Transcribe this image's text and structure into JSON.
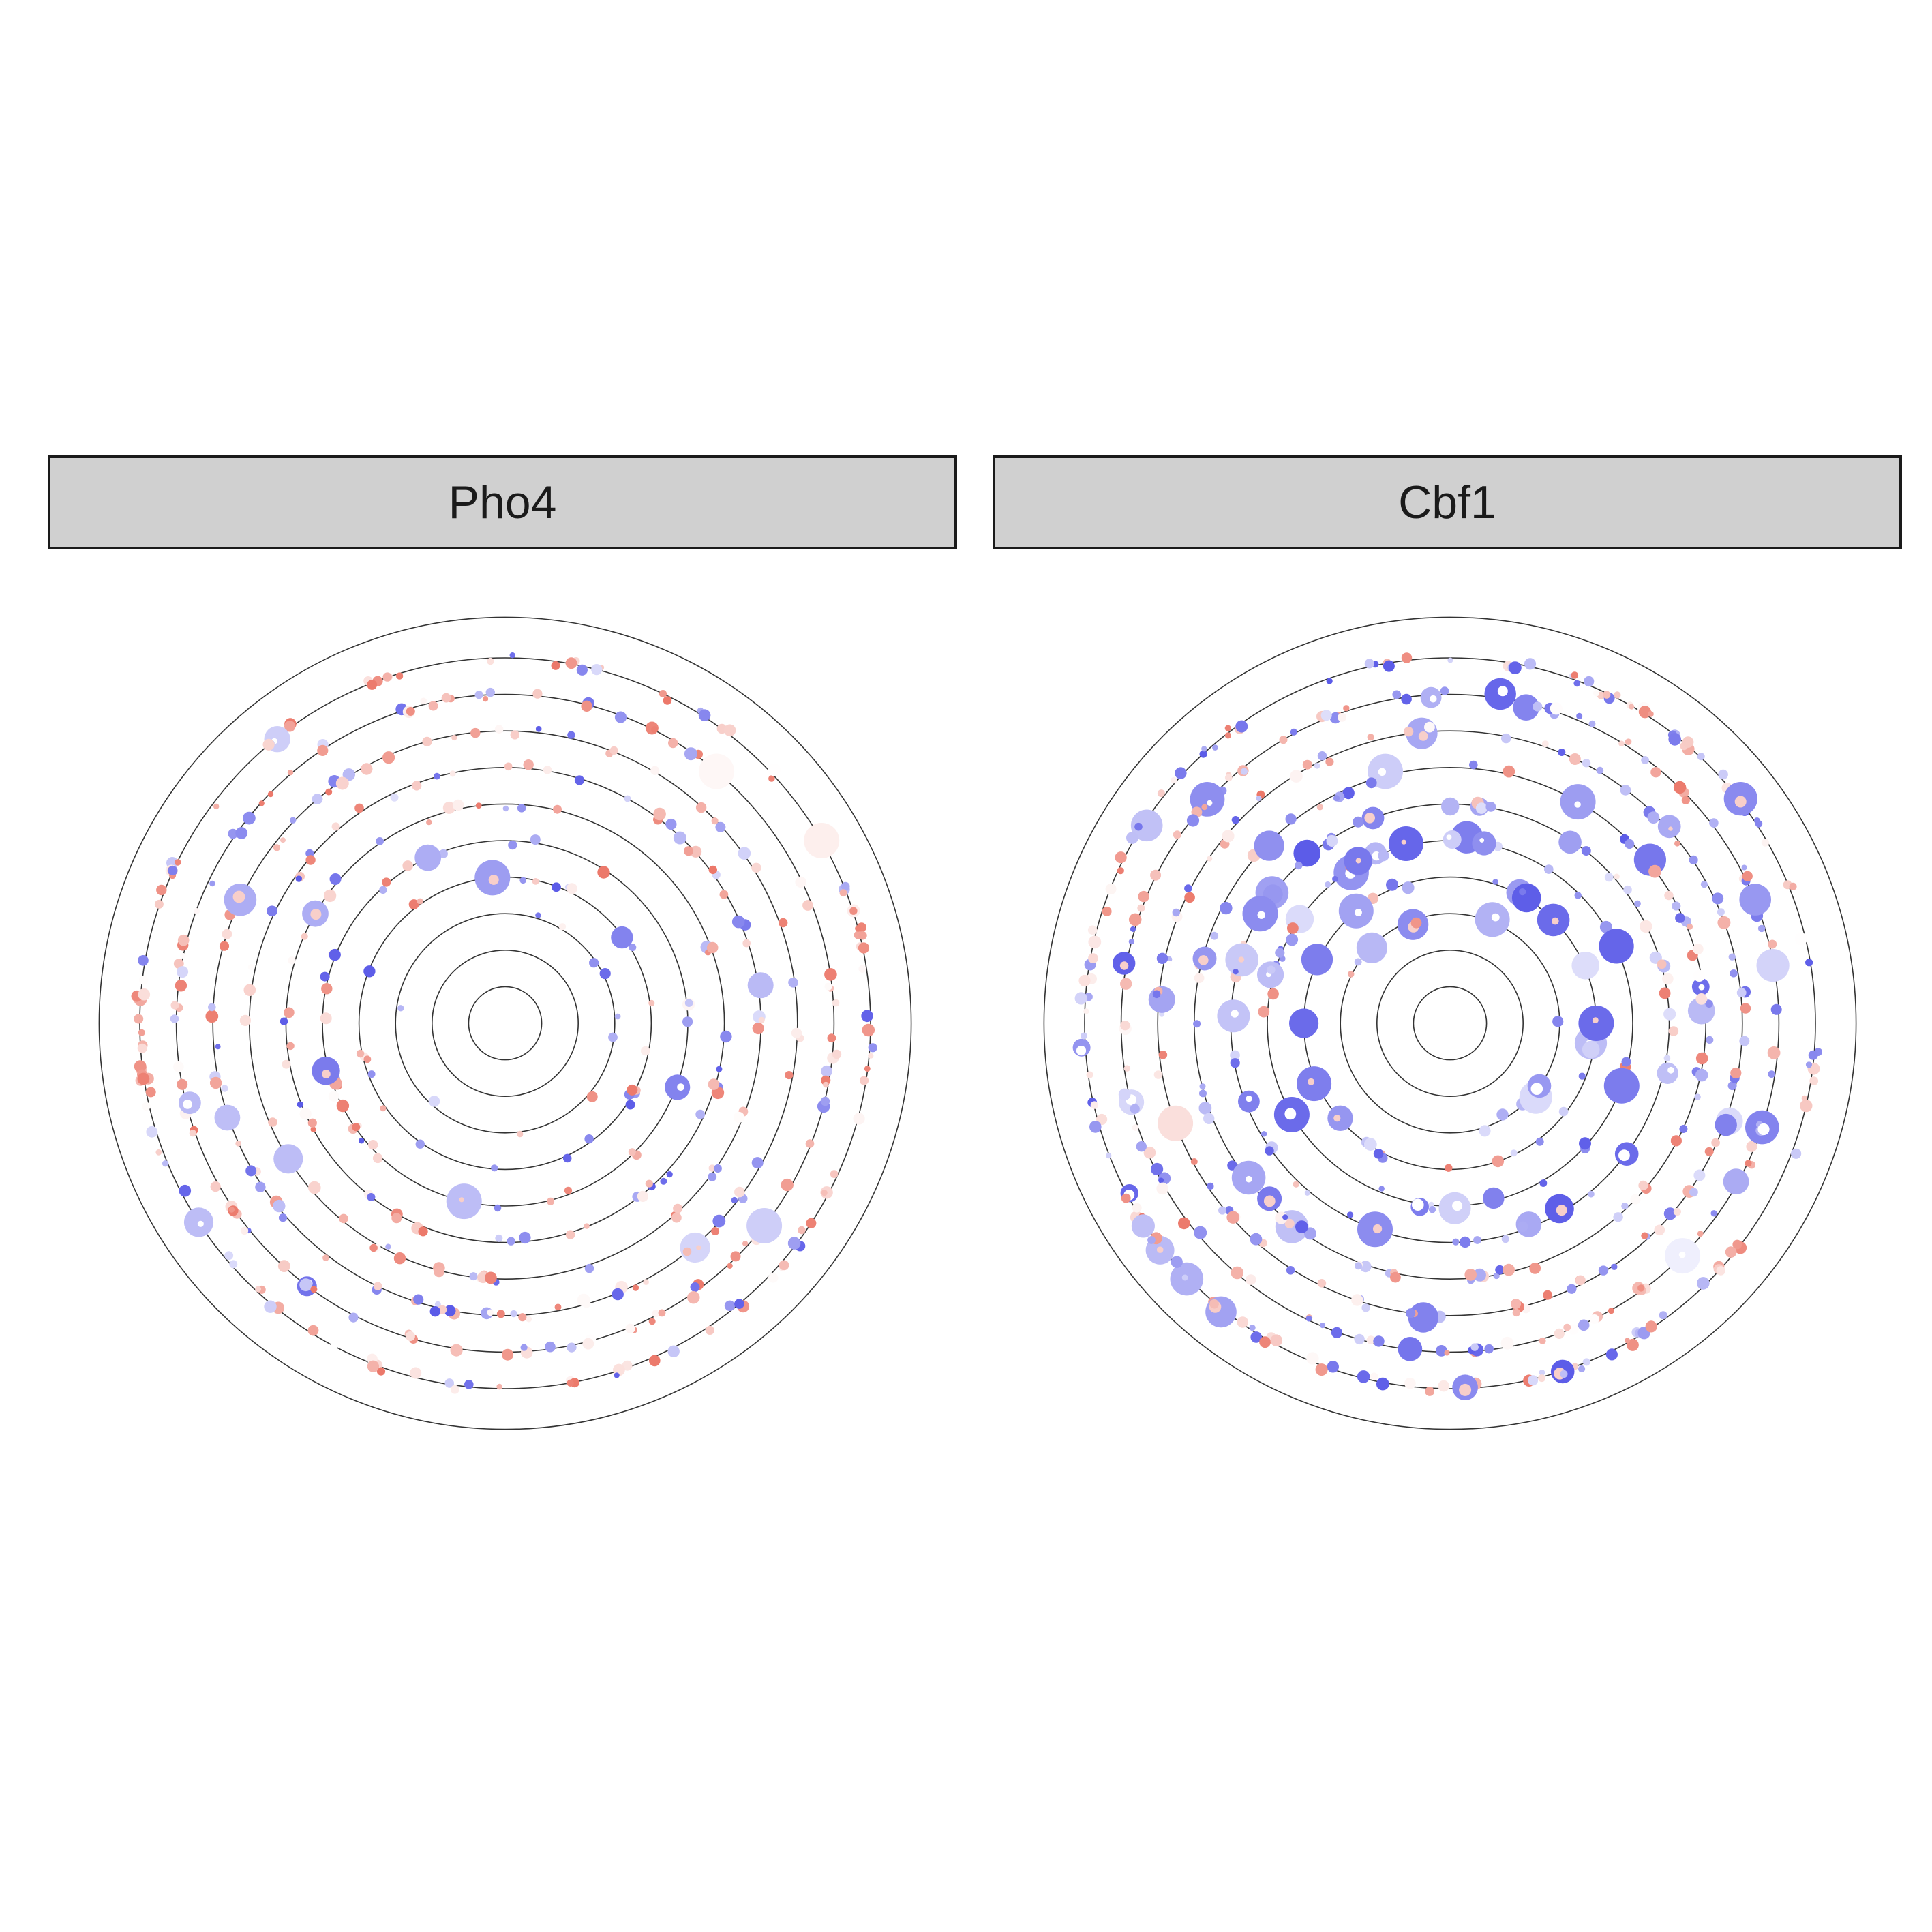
{
  "chart_data": [
    {
      "type": "scatter",
      "coordinate_system": "polar",
      "facet": "Pho4",
      "title": "",
      "xlabel": "",
      "ylabel": "",
      "axis_labels_shown": false,
      "grid": true,
      "rings": [
        1,
        2,
        3,
        4,
        5,
        6,
        7,
        8,
        9,
        10,
        11
      ],
      "outer_limit": 11,
      "color_scale": {
        "low": "#5b5be8",
        "mid": "#ffffff",
        "high": "#e8604f"
      },
      "density": 1.0,
      "blue_share": 0.45,
      "large_point_share": 0.05,
      "seed": 11,
      "highlights": [
        {
          "ring": 4,
          "angle": 355,
          "value": -0.6,
          "size": 1.0
        },
        {
          "ring": 5,
          "angle": 193,
          "value": -0.4,
          "size": 1.0
        },
        {
          "ring": 5,
          "angle": 335,
          "value": -0.5,
          "size": 0.7
        },
        {
          "ring": 6,
          "angle": 300,
          "value": -0.5,
          "size": 0.7
        },
        {
          "ring": 7,
          "angle": 238,
          "value": -0.4,
          "size": 0.8
        },
        {
          "ring": 8,
          "angle": 295,
          "value": -0.5,
          "size": 0.9
        },
        {
          "ring": 9,
          "angle": 128,
          "value": -0.3,
          "size": 1.0
        },
        {
          "ring": 9,
          "angle": 40,
          "value": 0.05,
          "size": 1.0
        },
        {
          "ring": 10,
          "angle": 60,
          "value": 0.1,
          "size": 1.0
        },
        {
          "ring": 10,
          "angle": 237,
          "value": -0.4,
          "size": 0.8
        }
      ]
    },
    {
      "type": "scatter",
      "coordinate_system": "polar",
      "facet": "Cbf1",
      "title": "",
      "xlabel": "",
      "ylabel": "",
      "axis_labels_shown": false,
      "grid": true,
      "rings": [
        1,
        2,
        3,
        4,
        5,
        6,
        7,
        8,
        9,
        10,
        11
      ],
      "outer_limit": 11,
      "color_scale": {
        "low": "#5b5be8",
        "mid": "#ffffff",
        "high": "#e8604f"
      },
      "density": 1.25,
      "blue_share": 0.8,
      "large_point_share": 0.3,
      "seed": 29,
      "highlights": [
        {
          "ring": 4,
          "angle": 45,
          "value": -0.9,
          "size": 0.9
        },
        {
          "ring": 4,
          "angle": 90,
          "value": -0.9,
          "size": 1.0
        },
        {
          "ring": 4,
          "angle": 270,
          "value": -0.9,
          "size": 0.8
        },
        {
          "ring": 5,
          "angle": 240,
          "value": -0.9,
          "size": 1.0
        },
        {
          "ring": 5,
          "angle": 110,
          "value": -0.8,
          "size": 1.0
        },
        {
          "ring": 6,
          "angle": 300,
          "value": -0.7,
          "size": 1.0
        },
        {
          "ring": 6,
          "angle": 200,
          "value": -0.7,
          "size": 1.0
        },
        {
          "ring": 7,
          "angle": 30,
          "value": -0.6,
          "size": 1.0
        },
        {
          "ring": 8,
          "angle": 250,
          "value": 0.2,
          "size": 1.0
        },
        {
          "ring": 9,
          "angle": 135,
          "value": -0.1,
          "size": 1.0
        }
      ]
    }
  ]
}
